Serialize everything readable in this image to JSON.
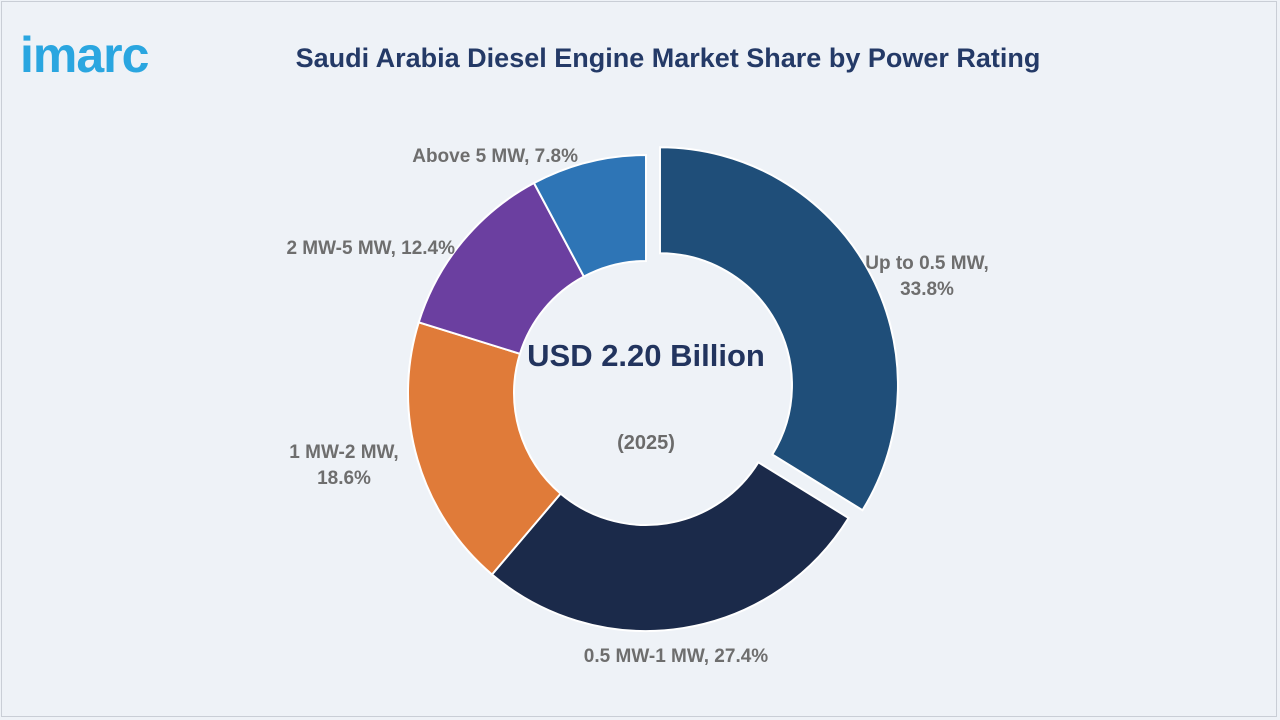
{
  "brand": {
    "logo_text": "imarc",
    "logo_color": "#2aa6e0"
  },
  "chart_data": {
    "type": "pie",
    "title": "Saudi Arabia Diesel Engine Market Share by Power Rating",
    "center_value": "USD 2.20 Billion",
    "center_subtitle": "(2025)",
    "unit": "%",
    "slices": [
      {
        "label": "Up to 0.5 MW",
        "value": 33.8,
        "display": "Up to 0.5 MW, 33.8%",
        "color": "#1f4e79",
        "exploded": true
      },
      {
        "label": "0.5 MW-1 MW",
        "value": 27.4,
        "display": "0.5 MW-1 MW, 27.4%",
        "color": "#1b2a4a",
        "exploded": false
      },
      {
        "label": "1 MW-2 MW",
        "value": 18.6,
        "display": "1 MW-2 MW, 18.6%",
        "color": "#e07b39",
        "exploded": false
      },
      {
        "label": "2 MW-5 MW",
        "value": 12.4,
        "display": "2 MW-5 MW, 12.4%",
        "color": "#6b3fa0",
        "exploded": false
      },
      {
        "label": "Above 5 MW",
        "value": 7.8,
        "display": "Above 5 MW, 7.8%",
        "color": "#2e75b6",
        "exploded": false
      }
    ]
  }
}
